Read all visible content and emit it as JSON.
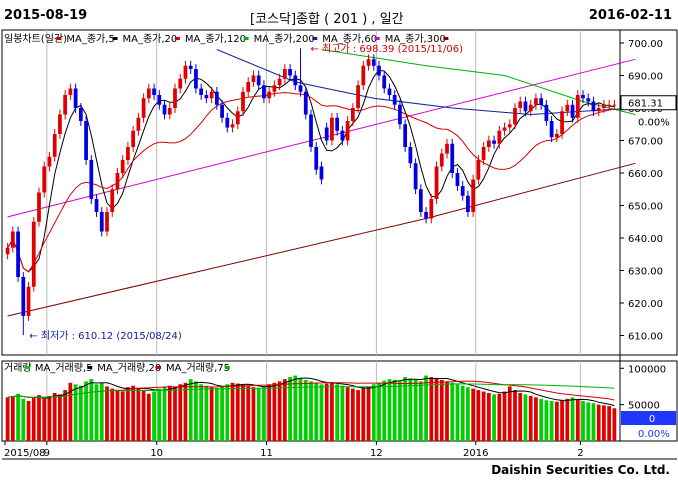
{
  "header": {
    "start_date": "2015-08-19",
    "title": "[코스닥]종합  ( 201 ) ,  일간",
    "end_date": "2016-02-11"
  },
  "footer": {
    "company": "Daishin Securities Co. Ltd."
  },
  "chart_data": [
    {
      "type": "candlestick",
      "legend": [
        {
          "label": "일봉차트(일간)",
          "color": "#d40000"
        },
        {
          "label": "MA_종가,5",
          "color": "#000000"
        },
        {
          "label": "MA_종가,20",
          "color": "#d40000"
        },
        {
          "label": "MA_종가,120",
          "color": "#00b000"
        },
        {
          "label": "MA_종가,200",
          "color": "#1020a0"
        },
        {
          "label": "MA_종가,60",
          "color": "#d000d0"
        },
        {
          "label": "MA_종가,300",
          "color": "#800000"
        }
      ],
      "ylim": [
        604,
        704
      ],
      "yticks": [
        "700.00",
        "690.00",
        "680.00",
        "670.00",
        "660.00",
        "650.00",
        "640.00",
        "630.00",
        "620.00",
        "610.00"
      ],
      "ytick_values": [
        700,
        690,
        680,
        670,
        660,
        650,
        640,
        630,
        620,
        610
      ],
      "current_value": "681.31",
      "current_value_num": 681.31,
      "change_percent": "0.00%",
      "annotations": {
        "high": {
          "label": "최고가 : 698.39 (2015/11/06)",
          "value": 698.39,
          "index": 56
        },
        "low": {
          "label": "최저가 : 610.12 (2015/08/24)",
          "value": 610.12,
          "index": 3
        }
      },
      "closes": [
        637,
        642,
        628,
        616,
        625,
        645,
        654,
        662,
        665,
        672,
        678,
        684,
        686,
        680,
        676,
        664,
        652,
        648,
        642,
        648,
        655,
        660,
        664,
        668,
        673,
        677,
        683,
        686,
        684,
        681,
        678,
        680,
        686,
        689,
        693,
        692,
        686,
        684,
        683,
        685,
        681,
        677,
        674,
        675,
        679,
        685,
        688,
        690,
        687,
        683,
        685,
        687,
        689,
        692,
        690,
        687,
        685,
        678,
        668,
        661,
        658,
        670,
        677,
        673,
        670,
        676,
        680,
        687,
        693,
        695,
        693,
        690,
        686,
        684,
        681,
        675,
        668,
        663,
        655,
        648,
        646,
        652,
        662,
        666,
        669,
        660,
        656,
        653,
        648,
        658,
        664,
        668,
        670,
        669,
        673,
        674,
        675,
        680,
        682,
        679,
        681,
        683,
        681,
        676,
        671,
        672,
        679,
        681,
        677,
        684,
        683,
        682,
        679,
        680,
        681,
        681,
        681
      ],
      "ma_lines": [
        {
          "name": "MA_종가,60",
          "color": "#d000d0",
          "points": [
            [
              0,
              646.5
            ],
            [
              120,
              695
            ]
          ]
        },
        {
          "name": "MA_종가,300",
          "color": "#800000",
          "points": [
            [
              0,
              616
            ],
            [
              80,
              646
            ],
            [
              120,
              663
            ]
          ]
        },
        {
          "name": "MA_종가,120",
          "color": "#00b000",
          "points": [
            [
              60,
              698
            ],
            [
              80,
              693
            ],
            [
              95,
              690
            ],
            [
              110,
              682
            ],
            [
              120,
              678
            ]
          ]
        },
        {
          "name": "MA_종가,200",
          "color": "#1020a0",
          "points": [
            [
              40,
              698
            ],
            [
              55,
              688
            ],
            [
              70,
              683
            ],
            [
              85,
              680
            ],
            [
              100,
              678
            ],
            [
              120,
              680
            ]
          ]
        }
      ]
    },
    {
      "type": "bar",
      "legend": [
        {
          "label": "거래량",
          "color": "#00d000"
        },
        {
          "label": "MA_거래량,5",
          "color": "#000000"
        },
        {
          "label": "MA_거래량,20",
          "color": "#d40000"
        },
        {
          "label": "MA_거래량,75",
          "color": "#00b000"
        }
      ],
      "ylim": [
        0,
        110000
      ],
      "yticks": [
        "100000",
        "50000"
      ],
      "ytick_values": [
        100000,
        50000
      ],
      "current_value": "0",
      "change_percent": "0.00%",
      "volumes": [
        60000,
        62000,
        65000,
        58000,
        55000,
        60000,
        63000,
        58000,
        62000,
        66000,
        64000,
        70000,
        80000,
        78000,
        76000,
        82000,
        85000,
        78000,
        80000,
        75000,
        72000,
        70000,
        68000,
        74000,
        76000,
        73000,
        70000,
        65000,
        68000,
        72000,
        74000,
        76000,
        75000,
        78000,
        80000,
        85000,
        82000,
        78000,
        76000,
        74000,
        73000,
        75000,
        78000,
        80000,
        79000,
        77000,
        76000,
        74000,
        72000,
        75000,
        78000,
        80000,
        82000,
        85000,
        88000,
        90000,
        86000,
        84000,
        82000,
        80000,
        78000,
        79000,
        81000,
        78000,
        76000,
        74000,
        72000,
        70000,
        73000,
        75000,
        78000,
        80000,
        83000,
        85000,
        84000,
        82000,
        88000,
        86000,
        84000,
        82000,
        90000,
        88000,
        86000,
        84000,
        82000,
        80000,
        78000,
        76000,
        74000,
        72000,
        70000,
        68000,
        66000,
        64000,
        65000,
        68000,
        75000,
        70000,
        66000,
        64000,
        62000,
        60000,
        58000,
        56000,
        55000,
        54000,
        56000,
        58000,
        60000,
        57000,
        55000,
        53000,
        52000,
        50000,
        49000,
        48000,
        45000
      ]
    }
  ],
  "x_labels": [
    "2015/08",
    "9",
    "10",
    "11",
    "12",
    "2016",
    "2"
  ],
  "x_label_indices": [
    0,
    8,
    29,
    50,
    71,
    90,
    110
  ]
}
